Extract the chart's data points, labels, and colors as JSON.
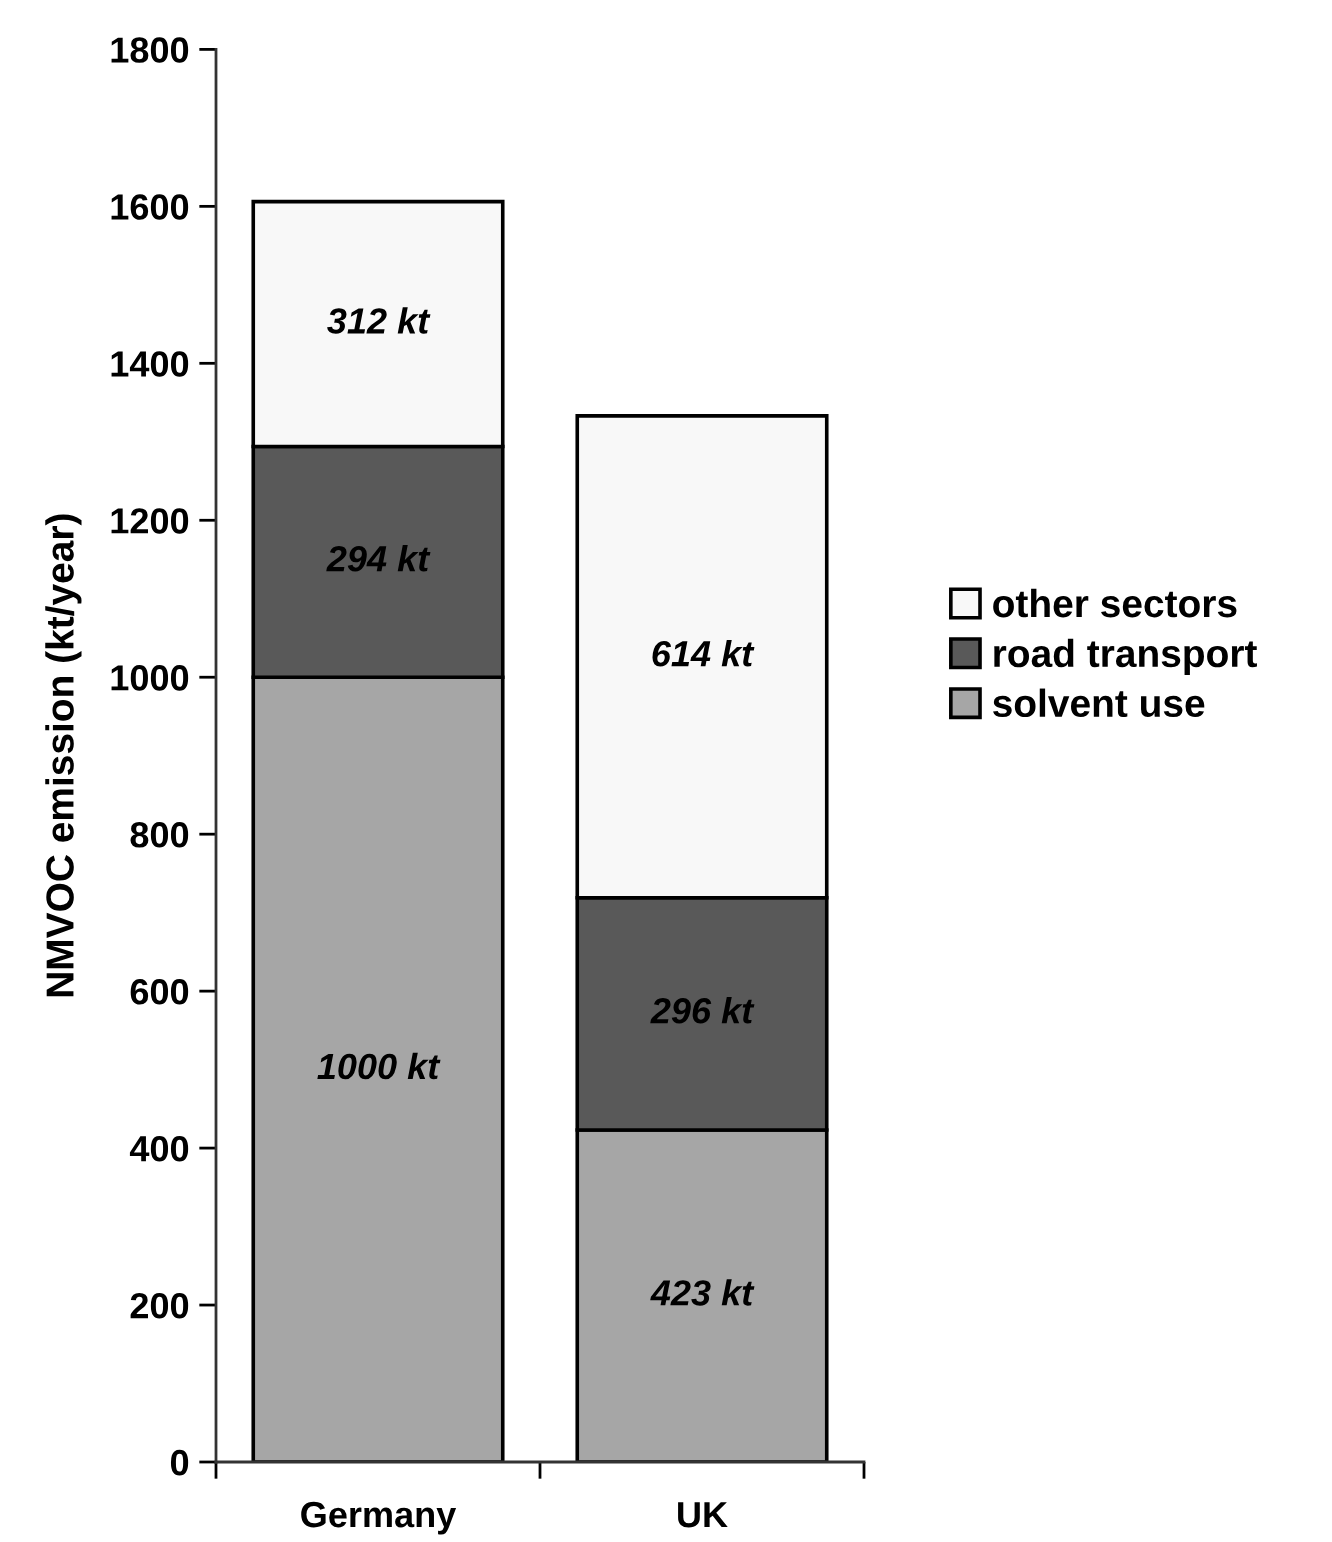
{
  "chart_data": {
    "type": "bar",
    "stacked": true,
    "ylabel": "NMVOC emission (kt/year)",
    "categories": [
      "Germany",
      "UK"
    ],
    "series": [
      {
        "name": "solvent use",
        "color": "#a6a6a6",
        "values": [
          1000,
          423
        ],
        "value_labels": [
          "1000 kt",
          "423 kt"
        ]
      },
      {
        "name": "road transport",
        "color": "#595959",
        "values": [
          294,
          296
        ],
        "value_labels": [
          "294 kt",
          "296 kt"
        ]
      },
      {
        "name": "other sectors",
        "color": "#f8f8f8",
        "values": [
          312,
          614
        ],
        "value_labels": [
          "312 kt",
          "614 kt"
        ]
      }
    ],
    "ylim": [
      0,
      1800
    ],
    "yticks": [
      0,
      200,
      400,
      600,
      800,
      1000,
      1200,
      1400,
      1600,
      1800
    ],
    "grid": false,
    "legend": "right"
  }
}
